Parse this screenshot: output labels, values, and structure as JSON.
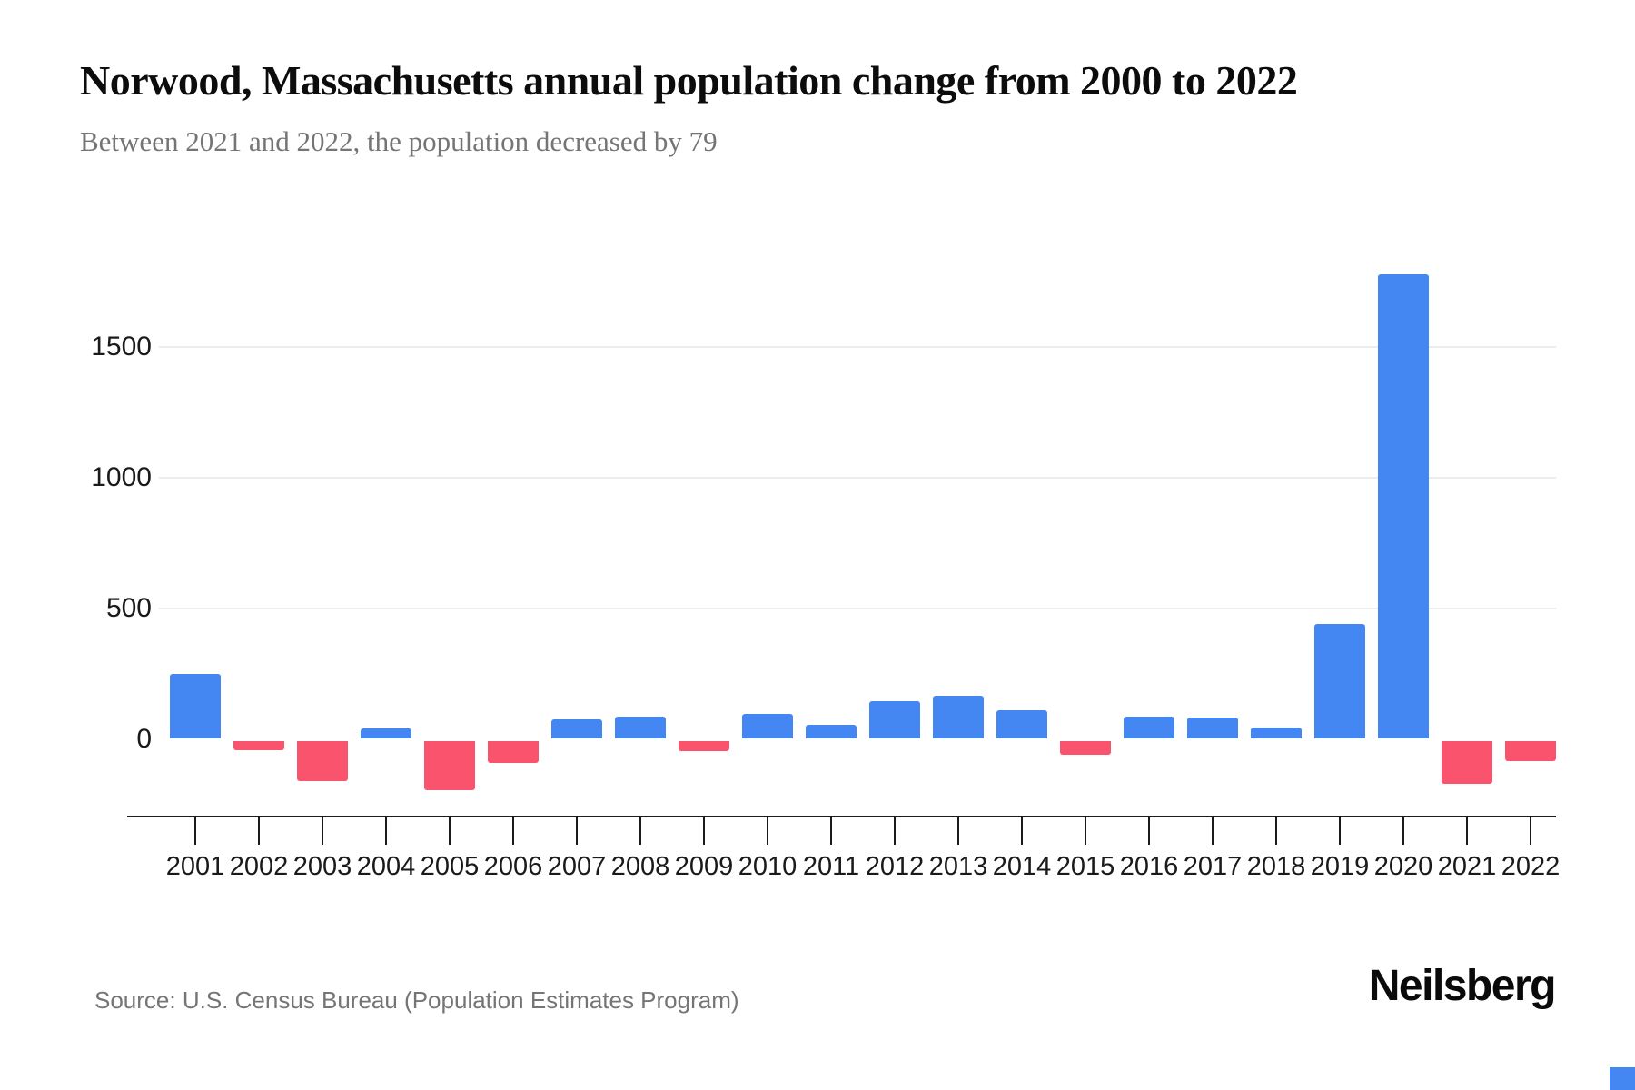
{
  "title": "Norwood, Massachusetts annual population change from 2000 to 2022",
  "subtitle": "Between 2021 and 2022, the population decreased by 79",
  "source_note": "Source: U.S. Census Bureau (Population Estimates Program)",
  "brand": "Neilsberg",
  "colors": {
    "positive_bar": "#4486F2",
    "negative_bar": "#F9536E",
    "gridline": "#ECECEC",
    "axis": "#1A1A1A",
    "subtitle_gray": "#757575",
    "corner_accent": "#4486F2"
  },
  "chart_data": {
    "type": "bar",
    "title": "Norwood, Massachusetts annual population change from 2000 to 2022",
    "subtitle": "Between 2021 and 2022, the population decreased by 79",
    "xlabel": "",
    "ylabel": "",
    "categories": [
      "2001",
      "2002",
      "2003",
      "2004",
      "2005",
      "2006",
      "2007",
      "2008",
      "2009",
      "2010",
      "2011",
      "2012",
      "2013",
      "2014",
      "2015",
      "2016",
      "2017",
      "2018",
      "2019",
      "2020",
      "2021",
      "2022"
    ],
    "values": [
      250,
      -35,
      -155,
      40,
      -190,
      -85,
      75,
      85,
      -40,
      95,
      55,
      145,
      165,
      110,
      -55,
      85,
      80,
      45,
      440,
      1780,
      -165,
      -79
    ],
    "yticks": [
      1500,
      1000,
      500,
      0
    ],
    "ylim": [
      -250,
      1850
    ],
    "grid": "horizontal-at-500-1000-1500",
    "legend": "none",
    "positive_color": "#4486F2",
    "negative_color": "#F9536E"
  }
}
